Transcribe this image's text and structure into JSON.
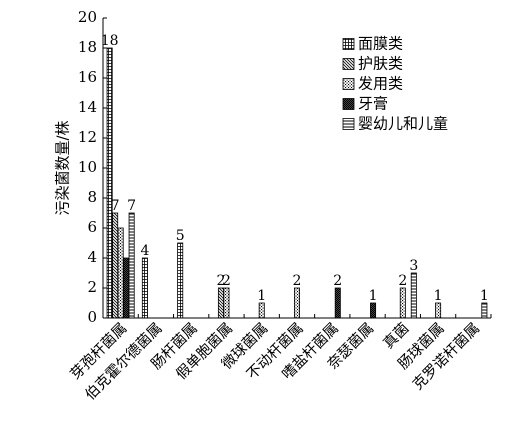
{
  "chart_data": {
    "type": "bar",
    "ylabel": "污染菌数量/株",
    "xlabel": "",
    "ylim": [
      0,
      20
    ],
    "yticks": [
      0,
      2,
      4,
      6,
      8,
      10,
      12,
      14,
      16,
      18,
      20
    ],
    "legend_position": "top-right",
    "grid": false,
    "categories": [
      "芽孢杆菌属",
      "伯克霍尔德菌属",
      "肠杆菌属",
      "假单胞菌属",
      "微球菌属",
      "不动杆菌属",
      "嗜盐杆菌属",
      "奈瑟菌属",
      "真菌",
      "肠球菌属",
      "克罗诺杆菌属"
    ],
    "series": [
      {
        "name": "面膜类",
        "values": [
          18,
          4,
          5,
          0,
          0,
          0,
          0,
          0,
          0,
          0,
          0
        ]
      },
      {
        "name": "护肤类",
        "values": [
          7,
          0,
          0,
          2,
          0,
          0,
          0,
          0,
          0,
          0,
          0
        ]
      },
      {
        "name": "发用类",
        "values": [
          6,
          0,
          0,
          2,
          1,
          2,
          0,
          0,
          2,
          1,
          0
        ]
      },
      {
        "name": "牙膏",
        "values": [
          4,
          0,
          0,
          0,
          0,
          0,
          2,
          1,
          0,
          0,
          0
        ]
      },
      {
        "name": "婴幼儿和儿童",
        "values": [
          7,
          0,
          0,
          0,
          0,
          0,
          0,
          0,
          3,
          0,
          1
        ]
      }
    ],
    "data_labels": [
      {
        "category": "芽孢杆菌属",
        "text": "18"
      },
      {
        "category": "芽孢杆菌属",
        "text": "7"
      },
      {
        "category": "芽孢杆菌属",
        "text": "7"
      },
      {
        "category": "伯克霍尔德菌属",
        "text": "4"
      },
      {
        "category": "肠杆菌属",
        "text": "5"
      },
      {
        "category": "假单胞菌属",
        "text": "2"
      },
      {
        "category": "假单胞菌属",
        "text": "2"
      },
      {
        "category": "微球菌属",
        "text": "1"
      },
      {
        "category": "不动杆菌属",
        "text": "2"
      },
      {
        "category": "嗜盐杆菌属",
        "text": "2"
      },
      {
        "category": "奈瑟菌属",
        "text": "1"
      },
      {
        "category": "真菌",
        "text": "2"
      },
      {
        "category": "真菌",
        "text": "3"
      },
      {
        "category": "肠球菌属",
        "text": "1"
      },
      {
        "category": "克罗诺杆菌属",
        "text": "1"
      }
    ],
    "colors": {
      "axis": "#000000",
      "bar_fill": "#ffffff",
      "bar_stroke": "#000000"
    }
  }
}
